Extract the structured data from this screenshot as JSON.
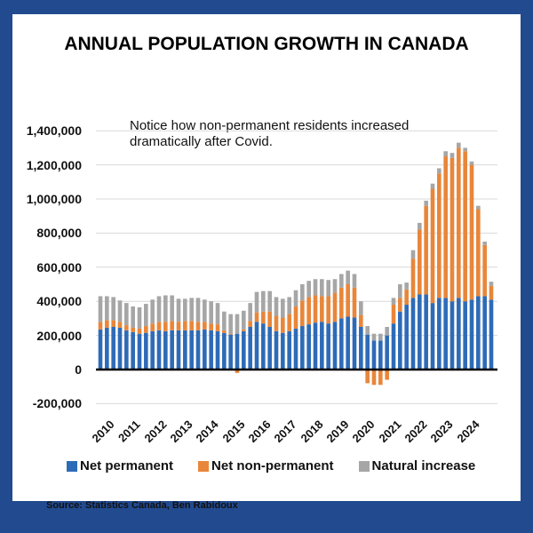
{
  "colors": {
    "frame": "#214a8f",
    "net_permanent": "#2e6bb7",
    "net_non_permanent": "#e8863a",
    "natural_increase": "#a6a6a6"
  },
  "chart_data": {
    "type": "bar",
    "stacked": true,
    "title": "ANNUAL POPULATION GROWTH IN CANADA",
    "annotation": "Notice how non-permanent residents increased dramatically after Covid.",
    "annotation_lines": [
      "Notice how non-permanent residents increased",
      "dramatically after Covid."
    ],
    "xlabel": "",
    "ylabel": "",
    "ylim": [
      -200000,
      1400000
    ],
    "yticks": [
      -200000,
      0,
      200000,
      400000,
      600000,
      800000,
      1000000,
      1200000,
      1400000
    ],
    "ytick_labels": [
      "-200,000",
      "0",
      "200,000",
      "400,000",
      "600,000",
      "800,000",
      "1,000,000",
      "1,200,000",
      "1,400,000"
    ],
    "xtick_labels": [
      "2010",
      "2011",
      "2012",
      "2013",
      "2014",
      "2015",
      "2016",
      "2017",
      "2018",
      "2019",
      "2020",
      "2021",
      "2022",
      "2023",
      "2024"
    ],
    "grid": true,
    "legend_position": "bottom",
    "source": "Source: Statistics Canada, Ben Rabidoux",
    "series": [
      {
        "name": "Net permanent",
        "values": [
          235000,
          245000,
          250000,
          245000,
          230000,
          220000,
          210000,
          215000,
          225000,
          230000,
          225000,
          230000,
          230000,
          230000,
          230000,
          230000,
          235000,
          230000,
          225000,
          215000,
          205000,
          210000,
          225000,
          250000,
          280000,
          270000,
          250000,
          225000,
          215000,
          225000,
          240000,
          255000,
          265000,
          275000,
          280000,
          270000,
          280000,
          300000,
          310000,
          305000,
          250000,
          205000,
          170000,
          170000,
          200000,
          270000,
          340000,
          380000,
          420000,
          440000,
          440000,
          390000,
          420000,
          420000,
          400000,
          420000,
          400000,
          410000,
          430000,
          430000,
          410000
        ]
      },
      {
        "name": "Net non-permanent",
        "values": [
          45000,
          45000,
          40000,
          35000,
          30000,
          25000,
          30000,
          40000,
          45000,
          50000,
          55000,
          55000,
          50000,
          55000,
          55000,
          50000,
          45000,
          40000,
          40000,
          15000,
          5000,
          -20000,
          10000,
          35000,
          55000,
          70000,
          90000,
          90000,
          90000,
          100000,
          130000,
          150000,
          160000,
          160000,
          150000,
          160000,
          170000,
          180000,
          190000,
          175000,
          70000,
          -80000,
          -90000,
          -90000,
          -60000,
          110000,
          80000,
          90000,
          230000,
          380000,
          520000,
          670000,
          730000,
          830000,
          840000,
          880000,
          880000,
          790000,
          510000,
          300000,
          80000
        ]
      },
      {
        "name": "Natural increase",
        "values": [
          150000,
          140000,
          135000,
          125000,
          130000,
          125000,
          125000,
          130000,
          140000,
          150000,
          155000,
          150000,
          135000,
          130000,
          135000,
          140000,
          130000,
          130000,
          125000,
          110000,
          115000,
          115000,
          110000,
          105000,
          120000,
          120000,
          120000,
          110000,
          110000,
          100000,
          95000,
          95000,
          95000,
          95000,
          100000,
          95000,
          80000,
          80000,
          80000,
          80000,
          80000,
          50000,
          40000,
          40000,
          50000,
          40000,
          80000,
          40000,
          50000,
          40000,
          30000,
          30000,
          30000,
          30000,
          30000,
          30000,
          20000,
          20000,
          20000,
          20000,
          25000
        ]
      }
    ]
  }
}
